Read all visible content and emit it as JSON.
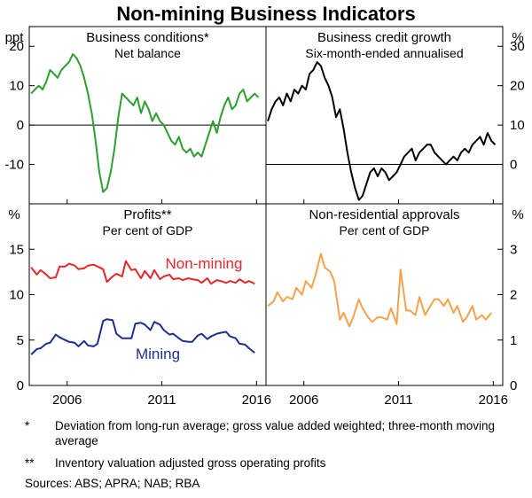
{
  "title": "Non-mining Business Indicators",
  "footnotes": [
    {
      "mark": "*",
      "text": "Deviation from long-run average; gross value added weighted; three-month moving average"
    },
    {
      "mark": "**",
      "text": "Inventory valuation adjusted gross operating profits"
    }
  ],
  "sources": "Sources:  ABS; APRA; NAB; RBA",
  "colors": {
    "green": "#2ca02c",
    "black": "#000000",
    "red": "#e8262b",
    "navy": "#1f2f8f",
    "orange": "#f7a24b"
  },
  "chart_data": [
    {
      "id": "business-conditions",
      "type": "line",
      "title": "Business conditions*",
      "subtitle": "Net balance",
      "ylabel": "ppt",
      "ylim": [
        -20,
        25
      ],
      "yticks": [
        20,
        10,
        0,
        -10
      ],
      "x_range": [
        2004.5,
        2017.0
      ],
      "xticks": [
        "2006",
        "2011",
        "2016"
      ],
      "series": [
        {
          "name": "Business conditions",
          "color": "#2ca02c",
          "x": [
            2004.6,
            2004.8,
            2005.0,
            2005.2,
            2005.4,
            2005.6,
            2005.8,
            2006.0,
            2006.2,
            2006.4,
            2006.6,
            2006.8,
            2007.0,
            2007.2,
            2007.4,
            2007.6,
            2007.8,
            2008.0,
            2008.2,
            2008.4,
            2008.6,
            2008.8,
            2009.0,
            2009.2,
            2009.4,
            2009.6,
            2009.8,
            2010.0,
            2010.2,
            2010.4,
            2010.6,
            2010.8,
            2011.0,
            2011.2,
            2011.4,
            2011.6,
            2011.8,
            2012.0,
            2012.2,
            2012.4,
            2012.6,
            2012.8,
            2013.0,
            2013.2,
            2013.4,
            2013.6,
            2013.8,
            2014.0,
            2014.2,
            2014.4,
            2014.6,
            2014.8,
            2015.0,
            2015.2,
            2015.4,
            2015.6,
            2015.8,
            2016.0,
            2016.2,
            2016.4,
            2016.6
          ],
          "values": [
            8,
            9,
            10,
            9,
            11,
            14,
            13,
            12,
            14,
            15,
            16,
            18,
            17,
            15,
            12,
            8,
            3,
            -4,
            -12,
            -17,
            -16,
            -12,
            -6,
            2,
            8,
            7,
            6,
            5,
            7,
            3,
            6,
            4,
            1,
            3,
            1,
            0,
            -2,
            -4,
            -5,
            -3,
            -6,
            -7,
            -6,
            -8,
            -7,
            -8,
            -5,
            -2,
            1,
            -2,
            2,
            5,
            7,
            4,
            5,
            8,
            9,
            6,
            7,
            8,
            7
          ]
        }
      ]
    },
    {
      "id": "business-credit-growth",
      "type": "line",
      "title": "Business credit growth",
      "subtitle": "Six-month-ended annualised",
      "ylabel": "%",
      "ylim": [
        -10,
        35
      ],
      "yticks": [
        30,
        20,
        10,
        0
      ],
      "x_range": [
        2004.5,
        2017.0
      ],
      "xticks": [
        "2006",
        "2011",
        "2016"
      ],
      "series": [
        {
          "name": "Business credit growth",
          "color": "#000000",
          "x": [
            2004.6,
            2004.8,
            2005.0,
            2005.2,
            2005.4,
            2005.6,
            2005.8,
            2006.0,
            2006.2,
            2006.4,
            2006.6,
            2006.8,
            2007.0,
            2007.2,
            2007.4,
            2007.6,
            2007.8,
            2008.0,
            2008.2,
            2008.4,
            2008.6,
            2008.8,
            2009.0,
            2009.2,
            2009.4,
            2009.6,
            2009.8,
            2010.0,
            2010.2,
            2010.4,
            2010.6,
            2010.8,
            2011.0,
            2011.2,
            2011.4,
            2011.6,
            2011.8,
            2012.0,
            2012.2,
            2012.4,
            2012.6,
            2012.8,
            2013.0,
            2013.2,
            2013.4,
            2013.6,
            2013.8,
            2014.0,
            2014.2,
            2014.4,
            2014.6,
            2014.8,
            2015.0,
            2015.2,
            2015.4,
            2015.6,
            2015.8,
            2016.0,
            2016.2,
            2016.4,
            2016.6
          ],
          "values": [
            11,
            14,
            16,
            17,
            15,
            18,
            16,
            19,
            18,
            20,
            19,
            23,
            24,
            26,
            25,
            22,
            20,
            17,
            12,
            14,
            9,
            3,
            -2,
            -6,
            -9,
            -8,
            -5,
            -2,
            -1,
            -3,
            -1,
            -2,
            -4,
            -3,
            -2,
            0,
            2,
            3,
            4,
            1,
            3,
            4,
            5,
            5,
            3,
            2,
            1,
            0,
            1,
            2,
            1,
            3,
            4,
            3,
            5,
            6,
            7,
            5,
            8,
            6,
            5
          ]
        }
      ]
    },
    {
      "id": "profits",
      "type": "line",
      "title": "Profits**",
      "subtitle": "Per cent of GDP",
      "ylabel": "%",
      "ylim": [
        0,
        20
      ],
      "yticks": [
        15,
        10,
        5,
        0
      ],
      "x_range": [
        2004.5,
        2017.0
      ],
      "xticks": [
        "2006",
        "2011",
        "2016"
      ],
      "series": [
        {
          "name": "Non-mining",
          "color": "#e8262b",
          "x": [
            2004.6,
            2004.9,
            2005.1,
            2005.4,
            2005.6,
            2005.9,
            2006.1,
            2006.4,
            2006.6,
            2006.9,
            2007.1,
            2007.4,
            2007.6,
            2007.9,
            2008.1,
            2008.4,
            2008.6,
            2008.9,
            2009.1,
            2009.4,
            2009.6,
            2009.9,
            2010.1,
            2010.4,
            2010.6,
            2010.9,
            2011.1,
            2011.4,
            2011.6,
            2011.9,
            2012.1,
            2012.4,
            2012.6,
            2012.9,
            2013.1,
            2013.4,
            2013.6,
            2013.9,
            2014.1,
            2014.4,
            2014.6,
            2014.9,
            2015.1,
            2015.4,
            2015.6,
            2015.9,
            2016.1,
            2016.4
          ],
          "values": [
            13.0,
            12.2,
            12.7,
            12.2,
            11.8,
            11.9,
            13.1,
            13.1,
            13.4,
            13.2,
            12.8,
            12.9,
            13.2,
            13.3,
            13.1,
            12.8,
            11.4,
            12.0,
            12.3,
            12.0,
            13.7,
            12.7,
            12.8,
            11.8,
            12.6,
            11.8,
            12.7,
            11.7,
            12.0,
            12.2,
            11.7,
            11.8,
            11.6,
            11.8,
            11.7,
            11.6,
            11.3,
            11.8,
            11.2,
            11.6,
            11.5,
            11.3,
            11.5,
            11.3,
            11.7,
            11.3,
            11.5,
            11.2
          ]
        },
        {
          "name": "Mining",
          "color": "#1f2f8f",
          "x": [
            2004.6,
            2004.9,
            2005.1,
            2005.4,
            2005.6,
            2005.9,
            2006.1,
            2006.4,
            2006.6,
            2006.9,
            2007.1,
            2007.4,
            2007.6,
            2007.9,
            2008.1,
            2008.4,
            2008.6,
            2008.9,
            2009.1,
            2009.4,
            2009.6,
            2009.9,
            2010.1,
            2010.4,
            2010.6,
            2010.9,
            2011.1,
            2011.4,
            2011.6,
            2011.9,
            2012.1,
            2012.4,
            2012.6,
            2012.9,
            2013.1,
            2013.4,
            2013.6,
            2013.9,
            2014.1,
            2014.4,
            2014.6,
            2014.9,
            2015.1,
            2015.4,
            2015.6,
            2015.9,
            2016.1,
            2016.4
          ],
          "values": [
            3.4,
            4.0,
            4.1,
            4.6,
            4.7,
            5.6,
            5.3,
            5.0,
            4.8,
            4.7,
            4.3,
            4.9,
            4.4,
            4.3,
            4.6,
            7.1,
            7.3,
            7.2,
            5.7,
            5.2,
            5.2,
            5.2,
            6.8,
            6.9,
            6.7,
            6.1,
            7.0,
            6.7,
            6.1,
            5.6,
            5.7,
            5.2,
            4.9,
            4.8,
            4.8,
            5.5,
            5.7,
            5.1,
            5.4,
            5.7,
            5.8,
            5.9,
            5.4,
            5.2,
            4.6,
            4.5,
            4.1,
            3.6
          ]
        }
      ],
      "annotations": [
        {
          "series": "Non-mining",
          "text": "Non-mining"
        },
        {
          "series": "Mining",
          "text": "Mining"
        }
      ]
    },
    {
      "id": "non-residential-approvals",
      "type": "line",
      "title": "Non-residential approvals",
      "subtitle": "Per cent of GDP",
      "ylabel": "%",
      "ylim": [
        0,
        4
      ],
      "yticks": [
        3,
        2,
        1,
        0
      ],
      "x_range": [
        2004.5,
        2017.0
      ],
      "xticks": [
        "2006",
        "2011",
        "2016"
      ],
      "series": [
        {
          "name": "Non-residential approvals",
          "color": "#f7a24b",
          "x": [
            2004.6,
            2004.9,
            2005.1,
            2005.4,
            2005.6,
            2005.9,
            2006.1,
            2006.4,
            2006.6,
            2006.9,
            2007.1,
            2007.4,
            2007.6,
            2007.9,
            2008.1,
            2008.4,
            2008.6,
            2008.9,
            2009.1,
            2009.4,
            2009.6,
            2009.9,
            2010.1,
            2010.4,
            2010.6,
            2010.9,
            2011.1,
            2011.4,
            2011.6,
            2011.9,
            2012.1,
            2012.4,
            2012.6,
            2012.9,
            2013.1,
            2013.4,
            2013.6,
            2013.9,
            2014.1,
            2014.4,
            2014.6,
            2014.9,
            2015.1,
            2015.4,
            2015.6,
            2015.9,
            2016.1,
            2016.4
          ],
          "values": [
            1.75,
            1.85,
            2.05,
            1.85,
            1.95,
            1.9,
            2.15,
            2.0,
            2.3,
            2.15,
            2.4,
            2.9,
            2.6,
            2.5,
            2.3,
            1.45,
            1.6,
            1.3,
            1.5,
            1.9,
            1.7,
            1.5,
            1.4,
            1.5,
            1.5,
            1.45,
            1.7,
            1.35,
            2.55,
            1.65,
            1.65,
            1.55,
            1.95,
            1.55,
            1.7,
            1.9,
            1.9,
            1.75,
            1.9,
            1.6,
            1.75,
            1.4,
            1.5,
            1.75,
            1.45,
            1.55,
            1.45,
            1.6
          ]
        }
      ]
    }
  ]
}
